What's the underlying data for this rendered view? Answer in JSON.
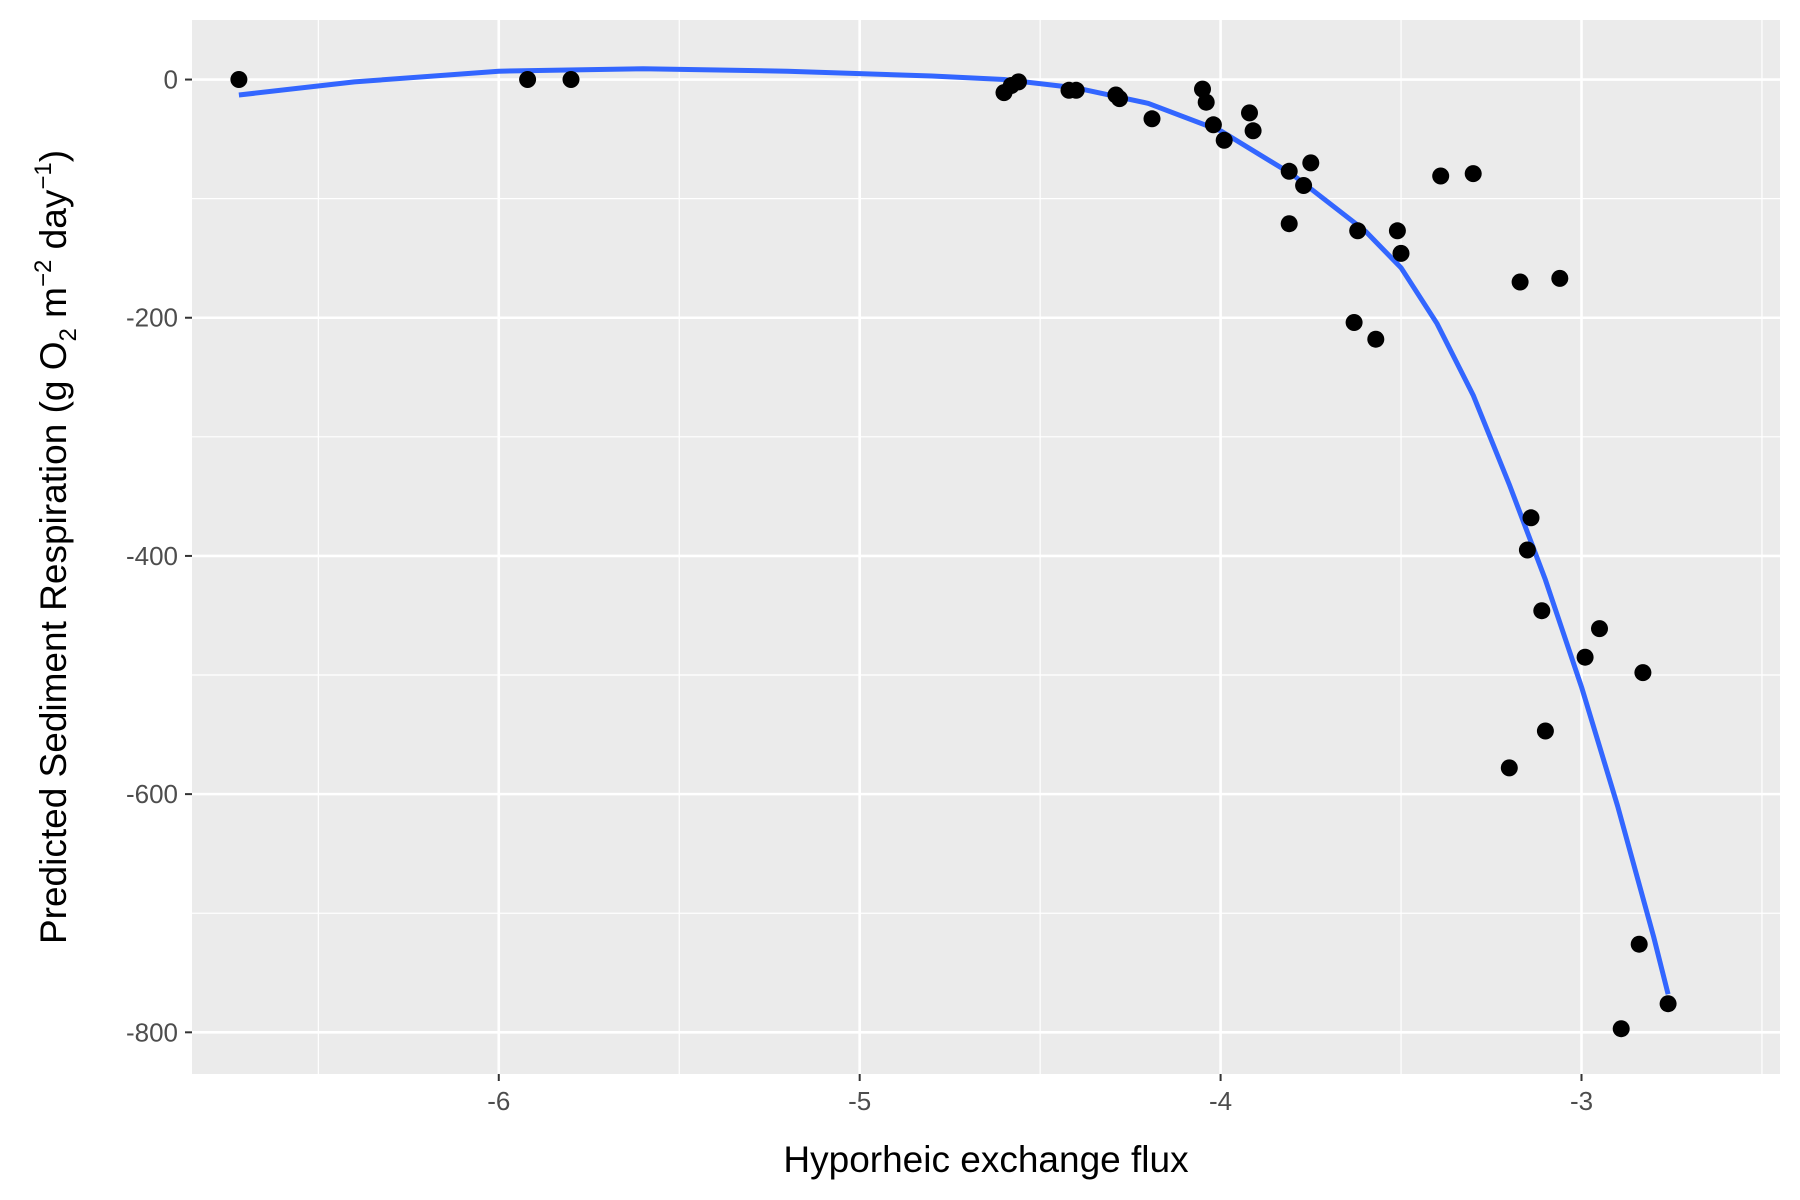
{
  "chart_data": {
    "type": "scatter",
    "title": "",
    "xlabel": "Hyporheic exchange flux",
    "ylabel": {
      "prefix": "Predicted Sediment Respiration (g O",
      "sub": "2",
      "mid": " m",
      "sup1": "−2",
      "mid2": " day",
      "sup2": "−1",
      "suffix": ")"
    },
    "xlim": [
      -6.85,
      -2.45
    ],
    "ylim": [
      -835,
      50
    ],
    "x_ticks": [
      -6,
      -5,
      -4,
      -3
    ],
    "x_tick_labels": [
      "-6",
      "-5",
      "-4",
      "-3"
    ],
    "y_ticks": [
      0,
      -200,
      -400,
      -600,
      -800
    ],
    "y_tick_labels": [
      "0",
      "-200",
      "-400",
      "-600",
      "-800"
    ],
    "grid": true,
    "legend": "none",
    "colors": {
      "panel": "#EBEBEB",
      "grid": "#FFFFFF",
      "points": "#000000",
      "smooth": "#3366FF"
    },
    "points": [
      {
        "x": -6.72,
        "y": 0
      },
      {
        "x": -5.92,
        "y": 0
      },
      {
        "x": -5.8,
        "y": 0
      },
      {
        "x": -4.6,
        "y": -11
      },
      {
        "x": -4.58,
        "y": -5
      },
      {
        "x": -4.56,
        "y": -2
      },
      {
        "x": -4.42,
        "y": -9
      },
      {
        "x": -4.4,
        "y": -9
      },
      {
        "x": -4.29,
        "y": -13
      },
      {
        "x": -4.28,
        "y": -16
      },
      {
        "x": -4.19,
        "y": -33
      },
      {
        "x": -4.05,
        "y": -8
      },
      {
        "x": -4.04,
        "y": -19
      },
      {
        "x": -4.02,
        "y": -38
      },
      {
        "x": -3.99,
        "y": -51
      },
      {
        "x": -3.92,
        "y": -28
      },
      {
        "x": -3.91,
        "y": -43
      },
      {
        "x": -3.81,
        "y": -121
      },
      {
        "x": -3.81,
        "y": -77
      },
      {
        "x": -3.77,
        "y": -89
      },
      {
        "x": -3.75,
        "y": -70
      },
      {
        "x": -3.63,
        "y": -204
      },
      {
        "x": -3.62,
        "y": -127
      },
      {
        "x": -3.57,
        "y": -218
      },
      {
        "x": -3.51,
        "y": -127
      },
      {
        "x": -3.5,
        "y": -146
      },
      {
        "x": -3.39,
        "y": -81
      },
      {
        "x": -3.3,
        "y": -79
      },
      {
        "x": -3.2,
        "y": -578
      },
      {
        "x": -3.17,
        "y": -170
      },
      {
        "x": -3.15,
        "y": -395
      },
      {
        "x": -3.14,
        "y": -368
      },
      {
        "x": -3.11,
        "y": -446
      },
      {
        "x": -3.1,
        "y": -547
      },
      {
        "x": -3.06,
        "y": -167
      },
      {
        "x": -2.99,
        "y": -485
      },
      {
        "x": -2.95,
        "y": -461
      },
      {
        "x": -2.89,
        "y": -797
      },
      {
        "x": -2.84,
        "y": -726
      },
      {
        "x": -2.83,
        "y": -498
      },
      {
        "x": -2.76,
        "y": -776
      }
    ],
    "smooth_line": {
      "x": [
        -6.72,
        -6.4,
        -6.0,
        -5.6,
        -5.2,
        -4.8,
        -4.6,
        -4.4,
        -4.2,
        -4.0,
        -3.8,
        -3.6,
        -3.5,
        -3.4,
        -3.3,
        -3.2,
        -3.1,
        -3.0,
        -2.9,
        -2.8,
        -2.76
      ],
      "y": [
        -13,
        -2,
        7,
        9,
        7,
        3,
        0,
        -7,
        -20,
        -43,
        -80,
        -127,
        -158,
        -205,
        -265,
        -340,
        -420,
        -510,
        -610,
        -720,
        -768
      ]
    }
  }
}
